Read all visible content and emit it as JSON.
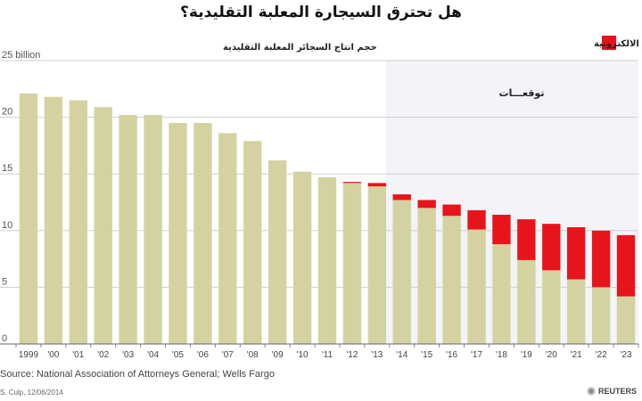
{
  "chart_data": {
    "type": "bar",
    "stacked": true,
    "title": "هل تحترق السيجارة المعلبة التقليدية؟",
    "categories": [
      "1999",
      "'00",
      "'01",
      "'02",
      "'03",
      "'04",
      "'05",
      "'06",
      "'07",
      "'08",
      "'09",
      "'10",
      "'11",
      "'12",
      "'13",
      "'14",
      "'15",
      "'16",
      "'17",
      "'18",
      "'19",
      "'20",
      "'21",
      "'22",
      "'23"
    ],
    "series": [
      {
        "name": "حجم انتاج السجائر المعلبة التقليدية",
        "color": "#d4d2a0",
        "values": [
          22.1,
          21.8,
          21.5,
          20.9,
          20.2,
          20.2,
          19.5,
          19.5,
          18.6,
          17.9,
          16.2,
          15.2,
          14.7,
          14.2,
          13.9,
          12.7,
          12.0,
          11.3,
          10.1,
          8.8,
          7.4,
          6.5,
          5.7,
          5.0,
          4.2
        ]
      },
      {
        "name": "حجم انتاج السجائر الالكترونية",
        "color": "#e8141c",
        "values": [
          0,
          0,
          0,
          0,
          0,
          0,
          0,
          0,
          0,
          0,
          0,
          0,
          0,
          0.1,
          0.3,
          0.5,
          0.7,
          1.0,
          1.7,
          2.6,
          3.6,
          4.1,
          4.6,
          5.0,
          5.4
        ]
      }
    ],
    "yticks": [
      0,
      5,
      10,
      15,
      20,
      25
    ],
    "ytick_top_label": "25 billion",
    "ylim": [
      0,
      25
    ],
    "forecast_label": "توقعـــات",
    "forecast_start": "'14",
    "grid": true,
    "legend": "top"
  },
  "source": "Source: National Association of Attorneys General; Wells Fargo",
  "credit": "S. Culp, 12/06/2014",
  "brand": "REUTERS"
}
